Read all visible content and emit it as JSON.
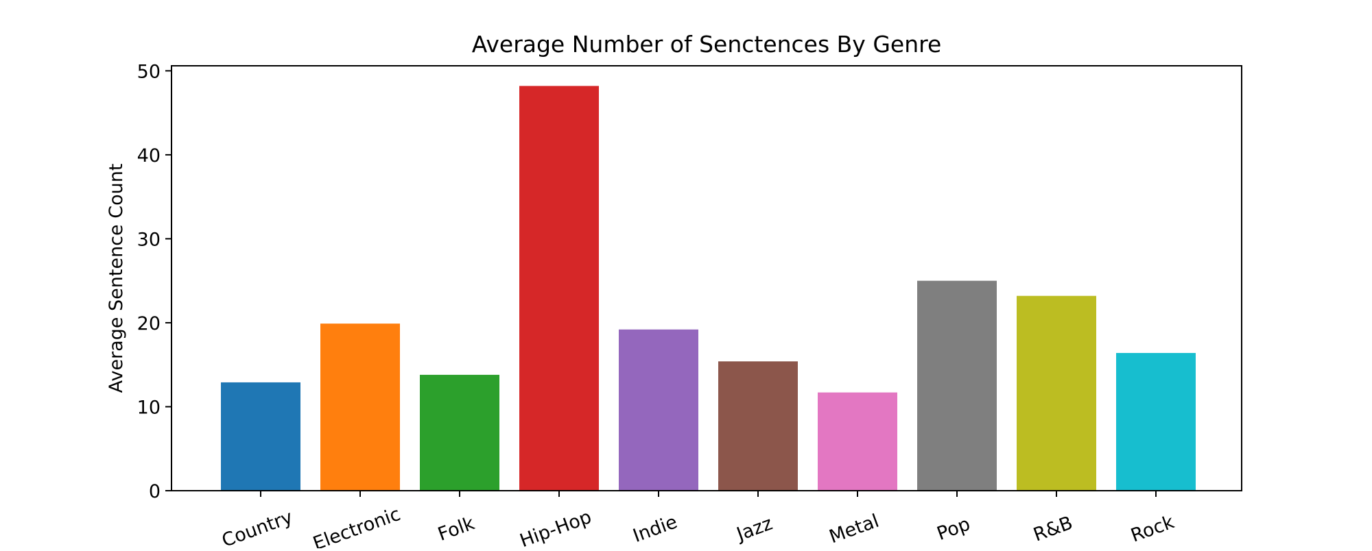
{
  "chart_data": {
    "type": "bar",
    "title": "Average Number of Senctences By Genre",
    "xlabel": "",
    "ylabel": "Average Sentence Count",
    "categories": [
      "Country",
      "Electronic",
      "Folk",
      "Hip-Hop",
      "Indie",
      "Jazz",
      "Metal",
      "Pop",
      "R&B",
      "Rock"
    ],
    "values": [
      12.9,
      19.9,
      13.8,
      48.2,
      19.2,
      15.4,
      11.7,
      25.0,
      23.2,
      16.4
    ],
    "colors": [
      "#1f77b4",
      "#ff7f0e",
      "#2ca02c",
      "#d62728",
      "#9467bd",
      "#8c564b",
      "#e377c2",
      "#7f7f7f",
      "#bcbd22",
      "#17becf"
    ],
    "ylim": [
      0,
      50.6
    ],
    "yticks": [
      0,
      10,
      20,
      30,
      40,
      50
    ],
    "grid": false,
    "legend": "none"
  }
}
